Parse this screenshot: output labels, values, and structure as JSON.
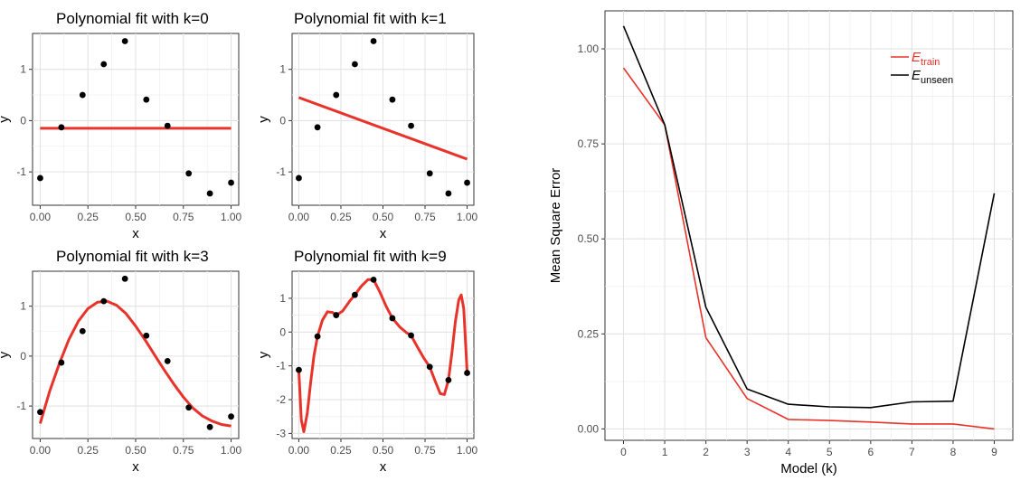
{
  "chart_data": [
    {
      "type": "scatter",
      "title": "Polynomial fit with k=0",
      "xlabel": "x",
      "ylabel": "y",
      "xlim": [
        -0.04,
        1.04
      ],
      "ylim": [
        -1.65,
        1.7
      ],
      "xticks": [
        "0.00",
        "0.25",
        "0.50",
        "0.75",
        "1.00"
      ],
      "yticks": [
        "-1",
        "0",
        "1"
      ],
      "ytick_values": [
        -1,
        0,
        1
      ],
      "points": {
        "x": [
          0,
          0.111,
          0.222,
          0.333,
          0.444,
          0.556,
          0.667,
          0.778,
          0.889,
          1.0
        ],
        "y": [
          -1.12,
          -0.13,
          0.5,
          1.1,
          1.55,
          0.41,
          -0.1,
          -1.03,
          -1.42,
          -1.21
        ]
      },
      "fit": {
        "x": [
          0,
          1
        ],
        "y": [
          -0.15,
          -0.15
        ]
      },
      "colors": {
        "points": "#000000",
        "fit": "#e8332a"
      }
    },
    {
      "type": "scatter",
      "title": "Polynomial fit with k=1",
      "xlabel": "x",
      "ylabel": "y",
      "xlim": [
        -0.04,
        1.04
      ],
      "ylim": [
        -1.65,
        1.7
      ],
      "xticks": [
        "0.00",
        "0.25",
        "0.50",
        "0.75",
        "1.00"
      ],
      "yticks": [
        "-1",
        "0",
        "1"
      ],
      "ytick_values": [
        -1,
        0,
        1
      ],
      "points": {
        "x": [
          0,
          0.111,
          0.222,
          0.333,
          0.444,
          0.556,
          0.667,
          0.778,
          0.889,
          1.0
        ],
        "y": [
          -1.12,
          -0.13,
          0.5,
          1.1,
          1.55,
          0.41,
          -0.1,
          -1.03,
          -1.42,
          -1.21
        ]
      },
      "fit": {
        "x": [
          0,
          1
        ],
        "y": [
          0.45,
          -0.75
        ]
      },
      "colors": {
        "points": "#000000",
        "fit": "#e8332a"
      }
    },
    {
      "type": "scatter",
      "title": "Polynomial fit with k=3",
      "xlabel": "x",
      "ylabel": "y",
      "xlim": [
        -0.04,
        1.04
      ],
      "ylim": [
        -1.65,
        1.7
      ],
      "xticks": [
        "0.00",
        "0.25",
        "0.50",
        "0.75",
        "1.00"
      ],
      "yticks": [
        "-1",
        "0",
        "1"
      ],
      "ytick_values": [
        -1,
        0,
        1
      ],
      "points": {
        "x": [
          0,
          0.111,
          0.222,
          0.333,
          0.444,
          0.556,
          0.667,
          0.778,
          0.889,
          1.0
        ],
        "y": [
          -1.12,
          -0.13,
          0.5,
          1.1,
          1.55,
          0.41,
          -0.1,
          -1.03,
          -1.42,
          -1.21
        ]
      },
      "fit": {
        "x": [
          0,
          0.05,
          0.1,
          0.15,
          0.2,
          0.25,
          0.3,
          0.35,
          0.4,
          0.45,
          0.5,
          0.55,
          0.6,
          0.65,
          0.7,
          0.75,
          0.8,
          0.85,
          0.9,
          0.95,
          1.0
        ],
        "y": [
          -1.35,
          -0.7,
          -0.15,
          0.33,
          0.7,
          0.95,
          1.08,
          1.1,
          1.02,
          0.85,
          0.6,
          0.32,
          0.02,
          -0.28,
          -0.56,
          -0.82,
          -1.04,
          -1.2,
          -1.3,
          -1.37,
          -1.4
        ]
      },
      "colors": {
        "points": "#000000",
        "fit": "#e8332a"
      }
    },
    {
      "type": "scatter",
      "title": "Polynomial fit with k=9",
      "xlabel": "x",
      "ylabel": "y",
      "xlim": [
        -0.04,
        1.04
      ],
      "ylim": [
        -3.15,
        1.8
      ],
      "xticks": [
        "0.00",
        "0.25",
        "0.50",
        "0.75",
        "1.00"
      ],
      "yticks": [
        "-3",
        "-2",
        "-1",
        "0",
        "1"
      ],
      "ytick_values": [
        -3,
        -2,
        -1,
        0,
        1
      ],
      "points": {
        "x": [
          0,
          0.111,
          0.222,
          0.333,
          0.444,
          0.556,
          0.667,
          0.778,
          0.889,
          1.0
        ],
        "y": [
          -1.12,
          -0.13,
          0.5,
          1.1,
          1.55,
          0.41,
          -0.1,
          -1.03,
          -1.42,
          -1.21
        ]
      },
      "fit": {
        "x": [
          0,
          0.015,
          0.03,
          0.05,
          0.07,
          0.09,
          0.111,
          0.14,
          0.17,
          0.2,
          0.222,
          0.26,
          0.3,
          0.333,
          0.37,
          0.41,
          0.444,
          0.48,
          0.52,
          0.556,
          0.6,
          0.64,
          0.667,
          0.7,
          0.74,
          0.778,
          0.81,
          0.84,
          0.865,
          0.889,
          0.91,
          0.93,
          0.95,
          0.965,
          0.98,
          1.0
        ],
        "y": [
          -1.12,
          -2.6,
          -2.95,
          -2.4,
          -1.5,
          -0.7,
          -0.13,
          0.35,
          0.6,
          0.58,
          0.5,
          0.62,
          0.9,
          1.1,
          1.35,
          1.55,
          1.55,
          1.2,
          0.75,
          0.41,
          0.15,
          -0.02,
          -0.1,
          -0.4,
          -0.75,
          -1.03,
          -1.45,
          -1.82,
          -1.85,
          -1.42,
          -0.6,
          0.3,
          0.95,
          1.1,
          0.7,
          -1.21
        ]
      },
      "colors": {
        "points": "#000000",
        "fit": "#e8332a"
      }
    },
    {
      "type": "line",
      "title": "",
      "xlabel": "Model (k)",
      "ylabel": "Mean Square Error",
      "xlim": [
        -0.45,
        9.45
      ],
      "ylim": [
        -0.03,
        1.1
      ],
      "xticks": [
        "0",
        "1",
        "2",
        "3",
        "4",
        "5",
        "6",
        "7",
        "8",
        "9"
      ],
      "yticks": [
        "0.00",
        "0.25",
        "0.50",
        "0.75",
        "1.00"
      ],
      "ytick_values": [
        0,
        0.25,
        0.5,
        0.75,
        1.0
      ],
      "x": [
        0,
        1,
        2,
        3,
        4,
        5,
        6,
        7,
        8,
        9
      ],
      "series": [
        {
          "name": "E",
          "subscript": "train",
          "color": "#e8332a",
          "values": [
            0.95,
            0.8,
            0.24,
            0.08,
            0.025,
            0.022,
            0.018,
            0.013,
            0.013,
            0.0
          ]
        },
        {
          "name": "E",
          "subscript": "unseen",
          "color": "#000000",
          "values": [
            1.06,
            0.8,
            0.32,
            0.105,
            0.065,
            0.058,
            0.056,
            0.071,
            0.073,
            0.62
          ]
        }
      ],
      "legend_placement": "top-right",
      "grid": true
    }
  ]
}
